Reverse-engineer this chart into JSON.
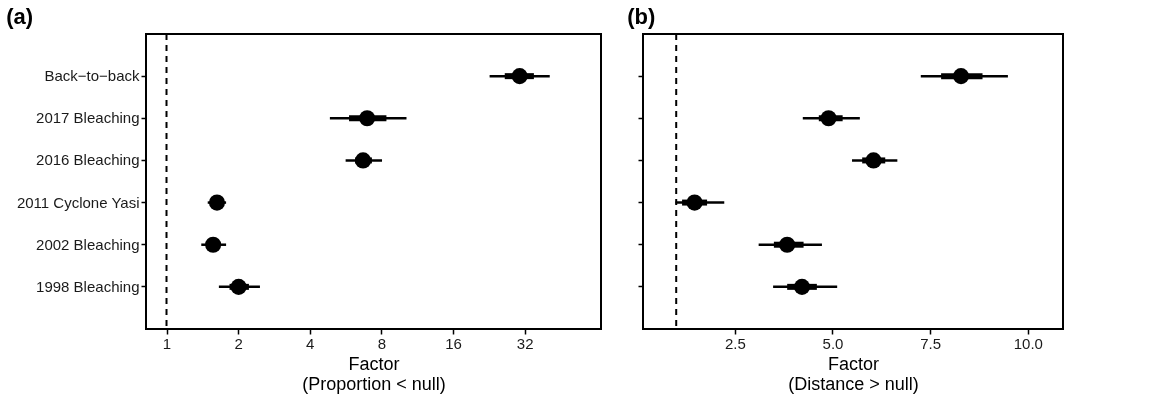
{
  "chart_data": [
    {
      "type": "box",
      "title": "(a)",
      "orientation": "horizontal",
      "log": "x",
      "grid": false,
      "xlabel": "Factor\n(Proportion < null)",
      "categories": [
        "Back−to−back",
        "2017 Bleaching",
        "2016 Bleaching",
        "2011 Cyclone Yasi",
        "2002 Bleaching",
        "1998 Bleaching"
      ],
      "xlim": [
        0.82,
        67
      ],
      "xticks": [
        1,
        2,
        4,
        8,
        16,
        32
      ],
      "boxes": [
        {
          "low": 22.8,
          "q1": 26.4,
          "median": 30.5,
          "q3": 35,
          "high": 40.8
        },
        {
          "low": 4.86,
          "q1": 5.85,
          "median": 6.97,
          "q3": 8.4,
          "high": 10.2
        },
        {
          "low": 5.66,
          "q1": 6.2,
          "median": 6.7,
          "q3": 7.3,
          "high": 8.05
        },
        {
          "low": 1.49,
          "q1": 1.56,
          "median": 1.63,
          "q3": 1.73,
          "high": 1.78
        },
        {
          "low": 1.4,
          "q1": 1.47,
          "median": 1.57,
          "q3": 1.67,
          "high": 1.78
        },
        {
          "low": 1.66,
          "q1": 1.84,
          "median": 2.01,
          "q3": 2.22,
          "high": 2.47
        }
      ],
      "ref_lines": [
        {
          "axis": "x",
          "value": 1,
          "line_style": "dashed",
          "color": "#000000"
        }
      ]
    },
    {
      "type": "box",
      "title": "(b)",
      "orientation": "horizontal",
      "grid": false,
      "tick_labels": "x",
      "xlabel": "Factor\n(Distance > null)",
      "categories": [
        null,
        null,
        null,
        null,
        null,
        null
      ],
      "xlim": [
        0.15,
        10.9
      ],
      "xticks": [
        {
          "value": 2.5,
          "label": "2.5"
        },
        {
          "value": 5,
          "label": "5.0"
        },
        {
          "value": 7.5,
          "label": "7.5"
        },
        {
          "value": 10,
          "label": "10.0"
        }
      ],
      "boxes": [
        {
          "low": 7.26,
          "q1": 7.78,
          "median": 8.29,
          "q3": 8.84,
          "high": 9.49
        },
        {
          "low": 4.24,
          "q1": 4.65,
          "median": 4.9,
          "q3": 5.26,
          "high": 5.7
        },
        {
          "low": 5.5,
          "q1": 5.76,
          "median": 6.05,
          "q3": 6.35,
          "high": 6.66
        },
        {
          "low": 0.98,
          "q1": 1.15,
          "median": 1.47,
          "q3": 1.79,
          "high": 2.23
        },
        {
          "low": 3.11,
          "q1": 3.5,
          "median": 3.84,
          "q3": 4.26,
          "high": 4.73
        },
        {
          "low": 3.48,
          "q1": 3.84,
          "median": 4.22,
          "q3": 4.6,
          "high": 5.12
        }
      ],
      "ref_lines": [
        {
          "axis": "x",
          "value": 1,
          "line_style": "dashed",
          "color": "#000000"
        }
      ]
    }
  ]
}
